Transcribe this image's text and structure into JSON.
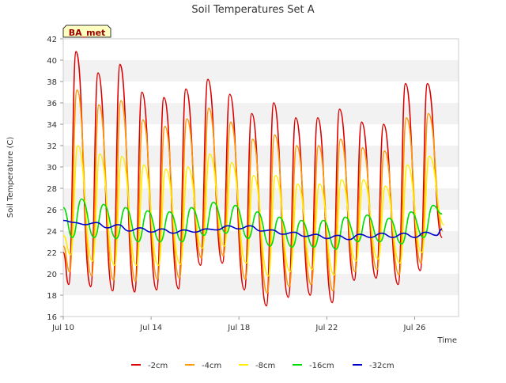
{
  "chart_data": {
    "type": "line",
    "title": "Soil Temperatures Set A",
    "xlabel": "Time",
    "ylabel": "Soil Temperature (C)",
    "site_label": "BA_met",
    "x_range": [
      "2023-07-10",
      "2023-07-28"
    ],
    "x_ticks": [
      {
        "date": "2023-07-10",
        "label": "Jul 10"
      },
      {
        "date": "2023-07-14",
        "label": "Jul 14"
      },
      {
        "date": "2023-07-18",
        "label": "Jul 18"
      },
      {
        "date": "2023-07-22",
        "label": "Jul 22"
      },
      {
        "date": "2023-07-26",
        "label": "Jul 26"
      }
    ],
    "ylim": [
      16,
      42
    ],
    "y_ticks": [
      16,
      18,
      20,
      22,
      24,
      26,
      28,
      30,
      32,
      34,
      36,
      38,
      40,
      42
    ],
    "grid": "alternating horizontal bands",
    "legend_position": "bottom",
    "series": [
      {
        "name": "-2cm",
        "color": "#dd0000",
        "points": [
          [
            "2023-07-10 00:00",
            22.0
          ],
          [
            "2023-07-10 06:00",
            19.0
          ],
          [
            "2023-07-10 14:00",
            40.8
          ],
          [
            "2023-07-11 06:00",
            18.8
          ],
          [
            "2023-07-11 14:00",
            38.8
          ],
          [
            "2023-07-12 06:00",
            18.4
          ],
          [
            "2023-07-12 14:00",
            39.6
          ],
          [
            "2023-07-13 06:00",
            18.3
          ],
          [
            "2023-07-13 14:00",
            37.0
          ],
          [
            "2023-07-14 06:00",
            18.5
          ],
          [
            "2023-07-14 14:00",
            36.5
          ],
          [
            "2023-07-15 06:00",
            18.6
          ],
          [
            "2023-07-15 14:00",
            37.3
          ],
          [
            "2023-07-16 06:00",
            20.8
          ],
          [
            "2023-07-16 14:00",
            38.2
          ],
          [
            "2023-07-17 06:00",
            21.0
          ],
          [
            "2023-07-17 14:00",
            36.8
          ],
          [
            "2023-07-18 06:00",
            18.5
          ],
          [
            "2023-07-18 14:00",
            35.0
          ],
          [
            "2023-07-19 06:00",
            17.0
          ],
          [
            "2023-07-19 14:00",
            36.0
          ],
          [
            "2023-07-20 06:00",
            17.8
          ],
          [
            "2023-07-20 14:00",
            34.6
          ],
          [
            "2023-07-21 06:00",
            18.0
          ],
          [
            "2023-07-21 14:00",
            34.6
          ],
          [
            "2023-07-22 06:00",
            17.3
          ],
          [
            "2023-07-22 14:00",
            35.4
          ],
          [
            "2023-07-23 06:00",
            19.4
          ],
          [
            "2023-07-23 14:00",
            34.2
          ],
          [
            "2023-07-24 06:00",
            19.6
          ],
          [
            "2023-07-24 14:00",
            34.0
          ],
          [
            "2023-07-25 06:00",
            19.0
          ],
          [
            "2023-07-25 14:00",
            37.8
          ],
          [
            "2023-07-26 06:00",
            20.3
          ],
          [
            "2023-07-26 14:00",
            37.8
          ],
          [
            "2023-07-27 06:00",
            23.4
          ]
        ]
      },
      {
        "name": "-4cm",
        "color": "#ff9900",
        "points": [
          [
            "2023-07-10 00:00",
            22.6
          ],
          [
            "2023-07-10 07:00",
            20.2
          ],
          [
            "2023-07-10 15:00",
            37.2
          ],
          [
            "2023-07-11 07:00",
            19.8
          ],
          [
            "2023-07-11 15:00",
            35.8
          ],
          [
            "2023-07-12 07:00",
            19.4
          ],
          [
            "2023-07-12 15:00",
            36.2
          ],
          [
            "2023-07-13 07:00",
            19.3
          ],
          [
            "2023-07-13 15:00",
            34.4
          ],
          [
            "2023-07-14 07:00",
            19.5
          ],
          [
            "2023-07-14 15:00",
            33.8
          ],
          [
            "2023-07-15 07:00",
            19.6
          ],
          [
            "2023-07-15 15:00",
            34.5
          ],
          [
            "2023-07-16 07:00",
            21.5
          ],
          [
            "2023-07-16 15:00",
            35.5
          ],
          [
            "2023-07-17 07:00",
            21.7
          ],
          [
            "2023-07-17 15:00",
            34.2
          ],
          [
            "2023-07-18 07:00",
            19.5
          ],
          [
            "2023-07-18 15:00",
            32.6
          ],
          [
            "2023-07-19 07:00",
            18.2
          ],
          [
            "2023-07-19 15:00",
            33.0
          ],
          [
            "2023-07-20 07:00",
            18.8
          ],
          [
            "2023-07-20 15:00",
            32.0
          ],
          [
            "2023-07-21 07:00",
            19.0
          ],
          [
            "2023-07-21 15:00",
            32.0
          ],
          [
            "2023-07-22 07:00",
            18.4
          ],
          [
            "2023-07-22 15:00",
            32.6
          ],
          [
            "2023-07-23 07:00",
            20.2
          ],
          [
            "2023-07-23 15:00",
            31.8
          ],
          [
            "2023-07-24 07:00",
            20.4
          ],
          [
            "2023-07-24 15:00",
            31.5
          ],
          [
            "2023-07-25 07:00",
            19.9
          ],
          [
            "2023-07-25 15:00",
            34.6
          ],
          [
            "2023-07-26 07:00",
            21.0
          ],
          [
            "2023-07-26 15:00",
            35.0
          ],
          [
            "2023-07-27 07:00",
            24.0
          ]
        ]
      },
      {
        "name": "-8cm",
        "color": "#ffee00",
        "points": [
          [
            "2023-07-10 00:00",
            23.6
          ],
          [
            "2023-07-10 08:00",
            21.8
          ],
          [
            "2023-07-10 16:00",
            32.0
          ],
          [
            "2023-07-11 08:00",
            21.2
          ],
          [
            "2023-07-11 16:00",
            31.2
          ],
          [
            "2023-07-12 08:00",
            20.8
          ],
          [
            "2023-07-12 16:00",
            31.0
          ],
          [
            "2023-07-13 08:00",
            20.8
          ],
          [
            "2023-07-13 16:00",
            30.2
          ],
          [
            "2023-07-14 08:00",
            20.8
          ],
          [
            "2023-07-14 16:00",
            29.8
          ],
          [
            "2023-07-15 08:00",
            20.9
          ],
          [
            "2023-07-15 16:00",
            30.0
          ],
          [
            "2023-07-16 08:00",
            22.4
          ],
          [
            "2023-07-16 16:00",
            31.2
          ],
          [
            "2023-07-17 08:00",
            22.6
          ],
          [
            "2023-07-17 16:00",
            30.4
          ],
          [
            "2023-07-18 08:00",
            21.0
          ],
          [
            "2023-07-18 16:00",
            29.2
          ],
          [
            "2023-07-19 08:00",
            19.8
          ],
          [
            "2023-07-19 16:00",
            29.2
          ],
          [
            "2023-07-20 08:00",
            20.2
          ],
          [
            "2023-07-20 16:00",
            28.4
          ],
          [
            "2023-07-21 08:00",
            20.4
          ],
          [
            "2023-07-21 16:00",
            28.4
          ],
          [
            "2023-07-22 08:00",
            19.9
          ],
          [
            "2023-07-22 16:00",
            28.8
          ],
          [
            "2023-07-23 08:00",
            21.2
          ],
          [
            "2023-07-23 16:00",
            28.8
          ],
          [
            "2023-07-24 08:00",
            21.4
          ],
          [
            "2023-07-24 16:00",
            28.2
          ],
          [
            "2023-07-25 08:00",
            21.0
          ],
          [
            "2023-07-25 16:00",
            30.2
          ],
          [
            "2023-07-26 08:00",
            22.0
          ],
          [
            "2023-07-26 16:00",
            31.0
          ],
          [
            "2023-07-27 08:00",
            24.6
          ]
        ]
      },
      {
        "name": "-16cm",
        "color": "#00dd00",
        "points": [
          [
            "2023-07-10 00:00",
            26.2
          ],
          [
            "2023-07-10 10:00",
            23.4
          ],
          [
            "2023-07-10 20:00",
            27.0
          ],
          [
            "2023-07-11 10:00",
            23.4
          ],
          [
            "2023-07-11 20:00",
            26.5
          ],
          [
            "2023-07-12 10:00",
            23.3
          ],
          [
            "2023-07-12 20:00",
            26.2
          ],
          [
            "2023-07-13 10:00",
            23.0
          ],
          [
            "2023-07-13 20:00",
            25.9
          ],
          [
            "2023-07-14 10:00",
            23.0
          ],
          [
            "2023-07-14 20:00",
            25.8
          ],
          [
            "2023-07-15 10:00",
            23.0
          ],
          [
            "2023-07-15 20:00",
            26.2
          ],
          [
            "2023-07-16 10:00",
            23.6
          ],
          [
            "2023-07-16 20:00",
            26.7
          ],
          [
            "2023-07-17 10:00",
            23.8
          ],
          [
            "2023-07-17 20:00",
            26.4
          ],
          [
            "2023-07-18 10:00",
            23.3
          ],
          [
            "2023-07-18 20:00",
            25.8
          ],
          [
            "2023-07-19 10:00",
            22.6
          ],
          [
            "2023-07-19 20:00",
            25.3
          ],
          [
            "2023-07-20 10:00",
            22.5
          ],
          [
            "2023-07-20 20:00",
            25.0
          ],
          [
            "2023-07-21 10:00",
            22.5
          ],
          [
            "2023-07-21 20:00",
            25.0
          ],
          [
            "2023-07-22 10:00",
            22.3
          ],
          [
            "2023-07-22 20:00",
            25.3
          ],
          [
            "2023-07-23 10:00",
            23.0
          ],
          [
            "2023-07-23 20:00",
            25.5
          ],
          [
            "2023-07-24 10:00",
            23.0
          ],
          [
            "2023-07-24 20:00",
            25.2
          ],
          [
            "2023-07-25 10:00",
            22.8
          ],
          [
            "2023-07-25 20:00",
            25.8
          ],
          [
            "2023-07-26 10:00",
            23.4
          ],
          [
            "2023-07-26 20:00",
            26.4
          ],
          [
            "2023-07-27 06:00",
            25.6
          ]
        ]
      },
      {
        "name": "-32cm",
        "color": "#0000cc",
        "points": [
          [
            "2023-07-10 00:00",
            25.0
          ],
          [
            "2023-07-10 12:00",
            24.8
          ],
          [
            "2023-07-11 00:00",
            24.6
          ],
          [
            "2023-07-11 12:00",
            24.8
          ],
          [
            "2023-07-12 00:00",
            24.3
          ],
          [
            "2023-07-12 12:00",
            24.6
          ],
          [
            "2023-07-13 00:00",
            24.0
          ],
          [
            "2023-07-13 12:00",
            24.3
          ],
          [
            "2023-07-14 00:00",
            23.9
          ],
          [
            "2023-07-14 12:00",
            24.2
          ],
          [
            "2023-07-15 00:00",
            23.8
          ],
          [
            "2023-07-15 12:00",
            24.1
          ],
          [
            "2023-07-16 00:00",
            23.9
          ],
          [
            "2023-07-16 12:00",
            24.2
          ],
          [
            "2023-07-17 00:00",
            24.1
          ],
          [
            "2023-07-17 12:00",
            24.5
          ],
          [
            "2023-07-18 00:00",
            24.2
          ],
          [
            "2023-07-18 12:00",
            24.5
          ],
          [
            "2023-07-19 00:00",
            24.0
          ],
          [
            "2023-07-19 12:00",
            24.1
          ],
          [
            "2023-07-20 00:00",
            23.7
          ],
          [
            "2023-07-20 12:00",
            23.9
          ],
          [
            "2023-07-21 00:00",
            23.5
          ],
          [
            "2023-07-21 12:00",
            23.7
          ],
          [
            "2023-07-22 00:00",
            23.3
          ],
          [
            "2023-07-22 12:00",
            23.6
          ],
          [
            "2023-07-23 00:00",
            23.2
          ],
          [
            "2023-07-23 12:00",
            23.7
          ],
          [
            "2023-07-24 00:00",
            23.4
          ],
          [
            "2023-07-24 12:00",
            23.8
          ],
          [
            "2023-07-25 00:00",
            23.4
          ],
          [
            "2023-07-25 12:00",
            23.8
          ],
          [
            "2023-07-26 00:00",
            23.4
          ],
          [
            "2023-07-26 12:00",
            23.9
          ],
          [
            "2023-07-27 00:00",
            23.6
          ],
          [
            "2023-07-27 06:00",
            24.2
          ]
        ]
      }
    ]
  }
}
